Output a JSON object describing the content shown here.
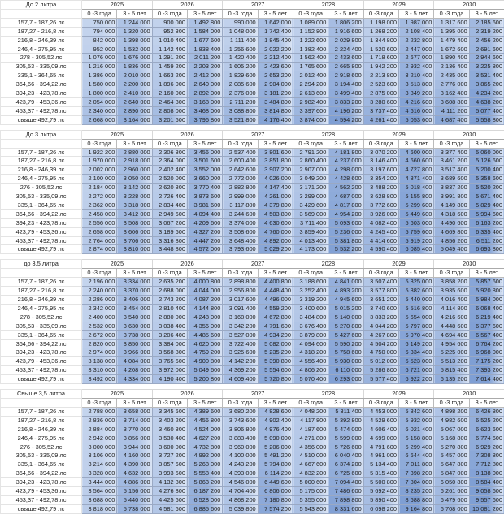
{
  "years": [
    "2025",
    "2026",
    "2027",
    "2028",
    "2029",
    "2030"
  ],
  "subheaders": [
    "0 -3 года",
    "3 - 5 лет"
  ],
  "colors": {
    "low": "#dbe5f5",
    "high": "#7f9fd4",
    "high_alt": "#6f92cf"
  },
  "blocks": [
    {
      "title": "До 2 литра",
      "rows": [
        {
          "label": "157,7 - 187,26 лс",
          "values": [
            "750 000",
            "1 244 000",
            "900 000",
            "1 492 800",
            "990 000",
            "1 642 000",
            "1 089 000",
            "1 806 200",
            "1 198 000",
            "1 987 000",
            "1 317 600",
            "2 185 600"
          ]
        },
        {
          "label": "187,27 - 216,8 лс",
          "values": [
            "794 000",
            "1 320 000",
            "952 800",
            "1 584 000",
            "1 048 000",
            "1 742 400",
            "1 152 800",
            "1 916 600",
            "1 268 200",
            "2 108 400",
            "1 395 000",
            "2 319 200"
          ]
        },
        {
          "label": "216,8 - 246,39 лс",
          "values": [
            "842 000",
            "1 398 000",
            "1 010 400",
            "1 677 600",
            "1 111 400",
            "1 845 400",
            "1 222 600",
            "2 029 800",
            "1 344 800",
            "2 232 800",
            "1 479 400",
            "2 456 200"
          ]
        },
        {
          "label": "246,4 - 275,95 лс",
          "values": [
            "952 000",
            "1 532 000",
            "1 142 400",
            "1 838 400",
            "1 256 600",
            "2 022 200",
            "1 382 400",
            "2 224 400",
            "1 520 600",
            "2 447 000",
            "1 672 600",
            "2 691 600"
          ]
        },
        {
          "label": "278 - 305,52 лс",
          "values": [
            "1 076 000",
            "1 676 000",
            "1 291 200",
            "2 011 200",
            "1 420 400",
            "2 212 400",
            "1 562 400",
            "2 433 600",
            "1 718 600",
            "2 677 000",
            "1 890 400",
            "2 944 600"
          ]
        },
        {
          "label": "305,53 - 335,09 лс",
          "values": [
            "1 216 000",
            "1 836 000",
            "1 459 200",
            "2 203 200",
            "1 605 200",
            "2 423 600",
            "1 765 600",
            "2 665 800",
            "1 942 200",
            "2 932 400",
            "2 136 400",
            "3 225 800"
          ]
        },
        {
          "label": "335,1 - 364,65 лс",
          "values": [
            "1 386 000",
            "2 010 000",
            "1 663 200",
            "2 412 000",
            "1 829 600",
            "2 653 200",
            "2 012 400",
            "2 918 600",
            "2 213 800",
            "3 210 400",
            "2 435 000",
            "3 531 400"
          ]
        },
        {
          "label": "364,66 - 394,22 лс",
          "values": [
            "1 580 000",
            "2 200 000",
            "1 896 000",
            "2 640 000",
            "2 085 600",
            "2 904 000",
            "2 294 200",
            "3 194 400",
            "2 523 600",
            "3 513 800",
            "2 776 000",
            "3 865 200"
          ]
        },
        {
          "label": "394,23 - 423,78 лс",
          "values": [
            "1 800 000",
            "2 410 000",
            "2 160 000",
            "2 892 000",
            "2 376 000",
            "3 181 200",
            "2 613 600",
            "3 499 400",
            "2 875 000",
            "3 849 200",
            "3 162 400",
            "4 234 200"
          ]
        },
        {
          "label": "423,79 - 453,36 лс",
          "values": [
            "2 054 000",
            "2 640 000",
            "2 464 800",
            "3 168 000",
            "2 711 200",
            "3 484 800",
            "2 982 400",
            "3 833 200",
            "3 280 600",
            "4 216 600",
            "3 608 800",
            "4 638 200"
          ]
        },
        {
          "label": "453,37 - 492,78 лс",
          "values": [
            "2 340 000",
            "2 890 000",
            "2 808 000",
            "3 468 000",
            "3 088 800",
            "3 814 800",
            "3 397 600",
            "4 196 200",
            "3 737 400",
            "4 616 000",
            "4 111 200",
            "5 077 400"
          ]
        },
        {
          "label": "свыше 492,79 лс",
          "values": [
            "2 668 000",
            "3 164 000",
            "3 201 600",
            "3 796 800",
            "3 521 800",
            "4 176 400",
            "3 874 000",
            "4 594 200",
            "4 261 400",
            "5 053 600",
            "4 687 400",
            "5 558 800"
          ]
        }
      ]
    },
    {
      "title": "До 3 литра",
      "rows": [
        {
          "label": "157,7 - 187,26 лс",
          "values": [
            "1 922 200",
            "2 880 000",
            "2 306 800",
            "3 456 000",
            "2 537 400",
            "3 801 600",
            "2 791 200",
            "4 181 800",
            "3 070 200",
            "4 600 000",
            "3 377 400",
            "5 060 000"
          ]
        },
        {
          "label": "187,27 - 216,8 лс",
          "values": [
            "1 970 000",
            "2 918 000",
            "2 364 000",
            "3 501 600",
            "2 600 400",
            "3 851 800",
            "2 860 400",
            "4 237 000",
            "3 146 400",
            "4 660 600",
            "3 461 200",
            "5 126 600"
          ]
        },
        {
          "label": "216,8 - 246,39 лс",
          "values": [
            "2 002 000",
            "2 960 000",
            "2 402 400",
            "3 552 000",
            "2 642 600",
            "3 907 200",
            "2 907 000",
            "4 298 000",
            "3 197 600",
            "4 727 800",
            "3 517 400",
            "5 200 400"
          ]
        },
        {
          "label": "246,4 - 275,95 лс",
          "values": [
            "2 100 000",
            "3 050 000",
            "2 520 000",
            "3 660 000",
            "2 772 000",
            "4 026 000",
            "3 049 200",
            "4 428 600",
            "3 354 200",
            "4 871 400",
            "3 689 600",
            "5 358 600"
          ]
        },
        {
          "label": "276 - 305,52 лс",
          "values": [
            "2 184 000",
            "3 142 000",
            "2 620 800",
            "3 770 400",
            "2 882 800",
            "4 147 400",
            "3 171 200",
            "4 562 200",
            "3 488 200",
            "5 018 400",
            "3 837 200",
            "5 520 200"
          ]
        },
        {
          "label": "305,53 - 335,09 лс",
          "values": [
            "2 272 000",
            "3 228 000",
            "2 726 400",
            "3 873 600",
            "2 999 000",
            "4 261 000",
            "3 299 000",
            "4 687 000",
            "3 628 800",
            "5 155 800",
            "3 991 800",
            "5 671 400"
          ]
        },
        {
          "label": "335,1 - 364,65 лс",
          "values": [
            "2 362 000",
            "3 318 000",
            "2 834 400",
            "3 981 600",
            "3 117 800",
            "4 379 800",
            "3 429 600",
            "4 817 800",
            "3 772 600",
            "5 299 600",
            "4 149 800",
            "5 829 400"
          ]
        },
        {
          "label": "364,66 - 394,22 лс",
          "values": [
            "2 458 000",
            "3 412 000",
            "2 949 600",
            "4 094 400",
            "3 244 600",
            "4 503 800",
            "3 569 000",
            "4 954 200",
            "3 926 000",
            "5 449 600",
            "4 318 600",
            "5 994 600"
          ]
        },
        {
          "label": "394,23 - 423,78 лс",
          "values": [
            "2 556 000",
            "3 508 000",
            "3 067 200",
            "4 209 600",
            "3 374 000",
            "4 630 600",
            "3 711 400",
            "5 093 600",
            "4 082 400",
            "5 603 000",
            "4 490 600",
            "6 163 200"
          ]
        },
        {
          "label": "423,79 - 453,36 лс",
          "values": [
            "2 658 000",
            "3 606 000",
            "3 189 600",
            "4 327 200",
            "3 508 600",
            "4 760 000",
            "3 859 400",
            "5 236 000",
            "4 245 400",
            "5 759 600",
            "4 669 800",
            "6 335 400"
          ]
        },
        {
          "label": "453,37 - 492,78 лс",
          "values": [
            "2 764 000",
            "3 706 000",
            "3 316 800",
            "4 447 200",
            "3 648 400",
            "4 892 000",
            "4 013 400",
            "5 381 800",
            "4 414 600",
            "5 919 200",
            "4 856 200",
            "6 511 200"
          ]
        },
        {
          "label": "свыше 492,79 лс",
          "values": [
            "2 874 000",
            "3 810 000",
            "3 448 800",
            "4 572 000",
            "3 793 600",
            "5 029 200",
            "4 173 000",
            "5 532 200",
            "4 590 400",
            "6 085 400",
            "5 049 400",
            "6 693 800"
          ]
        }
      ]
    },
    {
      "title": "до 3,5 литра",
      "rows": [
        {
          "label": "157,7 - 187,26 лс",
          "values": [
            "2 196 000",
            "3 334 000",
            "2 635 200",
            "4 000 800",
            "2 898 800",
            "4 400 800",
            "3 188 600",
            "4 841 000",
            "3 507 400",
            "5 325 000",
            "3 858 200",
            "5 857 600"
          ]
        },
        {
          "label": "187,27 - 216,8 лс",
          "values": [
            "2 240 000",
            "3 370 000",
            "2 688 000",
            "4 044 000",
            "2 956 800",
            "4 448 400",
            "3 252 400",
            "4 893 200",
            "3 577 800",
            "5 382 600",
            "3 935 600",
            "5 920 800"
          ]
        },
        {
          "label": "216,8 - 246,39 лс",
          "values": [
            "2 286 000",
            "3 406 000",
            "2 743 200",
            "4 087 200",
            "3 017 600",
            "4 496 000",
            "3 319 200",
            "4 945 600",
            "3 651 200",
            "5 440 000",
            "4 016 400",
            "5 984 000"
          ]
        },
        {
          "label": "246,4 - 275,95 лс",
          "values": [
            "2 342 000",
            "3 454 000",
            "2 810 400",
            "4 144 800",
            "3 091 400",
            "4 559 200",
            "3 400 600",
            "5 015 200",
            "3 740 600",
            "5 516 800",
            "4 114 800",
            "6 068 400"
          ]
        },
        {
          "label": "278 - 305,52 лс",
          "values": [
            "2 400 000",
            "3 540 000",
            "2 880 000",
            "4 248 000",
            "3 168 000",
            "4 672 800",
            "3 484 800",
            "5 140 000",
            "3 833 200",
            "5 654 000",
            "4 216 600",
            "6 219 400"
          ]
        },
        {
          "label": "305,53 - 335,09 лс",
          "values": [
            "2 532 000",
            "3 630 000",
            "3 038 400",
            "4 356 000",
            "3 342 200",
            "4 791 600",
            "3 676 400",
            "5 270 800",
            "4 044 200",
            "5 797 800",
            "4 448 600",
            "6 377 600"
          ]
        },
        {
          "label": "335,1 - 364,65 лс",
          "values": [
            "2 672 000",
            "3 738 000",
            "3 206 400",
            "4 485 600",
            "3 527 000",
            "4 934 200",
            "3 879 800",
            "5 427 600",
            "4 267 800",
            "5 970 400",
            "4 694 400",
            "6 567 400"
          ]
        },
        {
          "label": "364,66 - 394,22 лс",
          "values": [
            "2 820 000",
            "3 850 000",
            "3 384 000",
            "4 620 000",
            "3 722 400",
            "5 082 000",
            "4 094 600",
            "5 590 200",
            "4 504 200",
            "6 149 200",
            "4 954 600",
            "6 764 200"
          ]
        },
        {
          "label": "394,23 - 423,78 лс",
          "values": [
            "2 974 000",
            "3 966 000",
            "3 568 800",
            "4 759 200",
            "3 925 600",
            "5 235 200",
            "4 318 200",
            "5 758 600",
            "4 750 000",
            "6 334 400",
            "5 225 000",
            "6 968 000"
          ]
        },
        {
          "label": "423,79 - 453,36 лс",
          "values": [
            "3 138 000",
            "4 084 000",
            "3 765 600",
            "4 900 800",
            "4 142 200",
            "5 390 800",
            "4 556 400",
            "5 930 000",
            "5 012 000",
            "6 523 000",
            "5 513 200",
            "7 175 200"
          ]
        },
        {
          "label": "453,37 - 492,78 лс",
          "values": [
            "3 310 000",
            "4 208 000",
            "3 972 000",
            "5 049 600",
            "4 369 200",
            "5 554 600",
            "4 806 200",
            "6 110 000",
            "5 286 800",
            "6 721 000",
            "5 815 400",
            "7 393 200"
          ]
        },
        {
          "label": "свыше 492,79 лс",
          "values": [
            "3 492 000",
            "4 334 000",
            "4 190 400",
            "5 200 800",
            "4 609 400",
            "5 720 800",
            "5 070 400",
            "6 293 000",
            "5 577 400",
            "6 922 200",
            "6 135 200",
            "7 614 400"
          ]
        }
      ]
    },
    {
      "title": "Свыше 3,5 литра",
      "rows": [
        {
          "label": "157,7 - 187,26 лс",
          "values": [
            "2 788 000",
            "3 658 000",
            "3 345 600",
            "4 389 600",
            "3 680 200",
            "4 828 600",
            "4 048 200",
            "5 311 400",
            "4 453 000",
            "5 842 600",
            "4 898 200",
            "6 426 800"
          ]
        },
        {
          "label": "187,27 - 216,8 лс",
          "values": [
            "2 836 000",
            "3 714 000",
            "3 403 200",
            "4 456 800",
            "3 743 600",
            "4 902 400",
            "4 117 800",
            "5 392 800",
            "4 529 600",
            "5 932 000",
            "4 982 600",
            "6 525 200"
          ]
        },
        {
          "label": "216,8 - 246,39 лс",
          "values": [
            "2 884 000",
            "3 770 000",
            "3 460 800",
            "4 524 000",
            "3 806 800",
            "4 976 400",
            "4 187 600",
            "5 474 000",
            "4 606 400",
            "6 021 400",
            "5 067 000",
            "6 623 600"
          ]
        },
        {
          "label": "246,4 - 275,95 лс",
          "values": [
            "2 942 000",
            "3 856 000",
            "3 530 400",
            "4 627 200",
            "3 883 400",
            "5 090 000",
            "4 271 800",
            "5 599 000",
            "4 699 000",
            "6 158 800",
            "5 168 800",
            "6 774 600"
          ]
        },
        {
          "label": "276 - 305,52 лс",
          "values": [
            "3 000 000",
            "3 944 000",
            "3 600 000",
            "4 732 800",
            "3 960 000",
            "5 206 000",
            "4 356 000",
            "5 726 600",
            "4 791 600",
            "6 299 400",
            "5 270 800",
            "6 929 200"
          ]
        },
        {
          "label": "305,53 - 335,09 лс",
          "values": [
            "3 106 000",
            "4 160 000",
            "3 727 200",
            "4 992 000",
            "4 100 000",
            "5 491 200",
            "4 510 000",
            "6 040 400",
            "4 961 000",
            "6 644 400",
            "5 457 000",
            "7 308 800"
          ]
        },
        {
          "label": "335,1 - 364,65 лс",
          "values": [
            "3 214 600",
            "4 390 000",
            "3 857 600",
            "5 268 000",
            "4 243 200",
            "5 794 800",
            "4 667 600",
            "6 374 200",
            "5 134 400",
            "7 011 800",
            "5 647 800",
            "7 712 800"
          ]
        },
        {
          "label": "364,66 - 394,22 лс",
          "values": [
            "3 328 000",
            "4 632 000",
            "3 993 600",
            "5 558 400",
            "4 393 000",
            "6 114 200",
            "4 832 200",
            "6 725 600",
            "5 315 400",
            "7 398 200",
            "5 847 000",
            "8 138 000"
          ]
        },
        {
          "label": "394,23 - 423,78 лс",
          "values": [
            "3 444 000",
            "4 886 000",
            "4 132 800",
            "5 863 200",
            "4 546 000",
            "6 449 600",
            "5 000 600",
            "7 094 400",
            "5 500 800",
            "7 804 000",
            "6 050 800",
            "8 584 400"
          ]
        },
        {
          "label": "423,79 - 453,36 лс",
          "values": [
            "3 564 000",
            "5 156 000",
            "4 276 800",
            "6 187 200",
            "4 704 400",
            "6 806 000",
            "5 175 000",
            "7 486 600",
            "5 692 400",
            "8 235 200",
            "6 261 600",
            "9 058 600"
          ]
        },
        {
          "label": "453,37 - 492,78 лс",
          "values": [
            "3 688 000",
            "5 440 000",
            "4 425 600",
            "6 528 000",
            "4 868 200",
            "7 180 800",
            "5 355 000",
            "7 898 800",
            "5 890 400",
            "8 688 800",
            "6 479 600",
            "9 557 600"
          ]
        },
        {
          "label": "свыше 492,79 лс",
          "values": [
            "3 818 000",
            "5 738 000",
            "4 581 600",
            "6 885 600",
            "5 039 800",
            "7 574 200",
            "5 543 800",
            "8 331 600",
            "6 098 200",
            "9 164 800",
            "6 708 000",
            "10 081 200"
          ]
        }
      ]
    }
  ]
}
